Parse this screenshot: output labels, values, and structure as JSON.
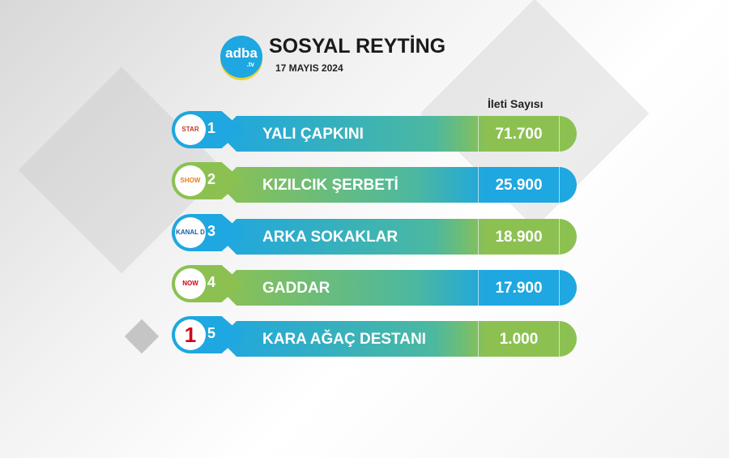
{
  "header": {
    "logo_text": "adba",
    "logo_suffix": ".tv",
    "title": "SOSYAL REYTİNG",
    "date": "17 MAYIS 2024"
  },
  "column_header": "İleti Sayısı",
  "rows": [
    {
      "rank": "1",
      "channel": "STAR",
      "name": "YALI ÇAPKINI",
      "value": "71.700",
      "chan_color": "#c0392b"
    },
    {
      "rank": "2",
      "channel": "SHOW",
      "name": "KIZILCIK ŞERBETİ",
      "value": "25.900",
      "chan_color": "#e67e22"
    },
    {
      "rank": "3",
      "channel": "KANAL D",
      "name": "ARKA SOKAKLAR",
      "value": "18.900",
      "chan_color": "#1a5fa8"
    },
    {
      "rank": "4",
      "channel": "NOW",
      "name": "GADDAR",
      "value": "17.900",
      "chan_color": "#d0021b"
    },
    {
      "rank": "5",
      "channel": "1",
      "name": "KARA AĞAÇ DESTANI",
      "value": "1.000",
      "chan_color": "#d0021b"
    }
  ],
  "colors": {
    "blue": "#1ea7e0",
    "green": "#8cc152"
  }
}
